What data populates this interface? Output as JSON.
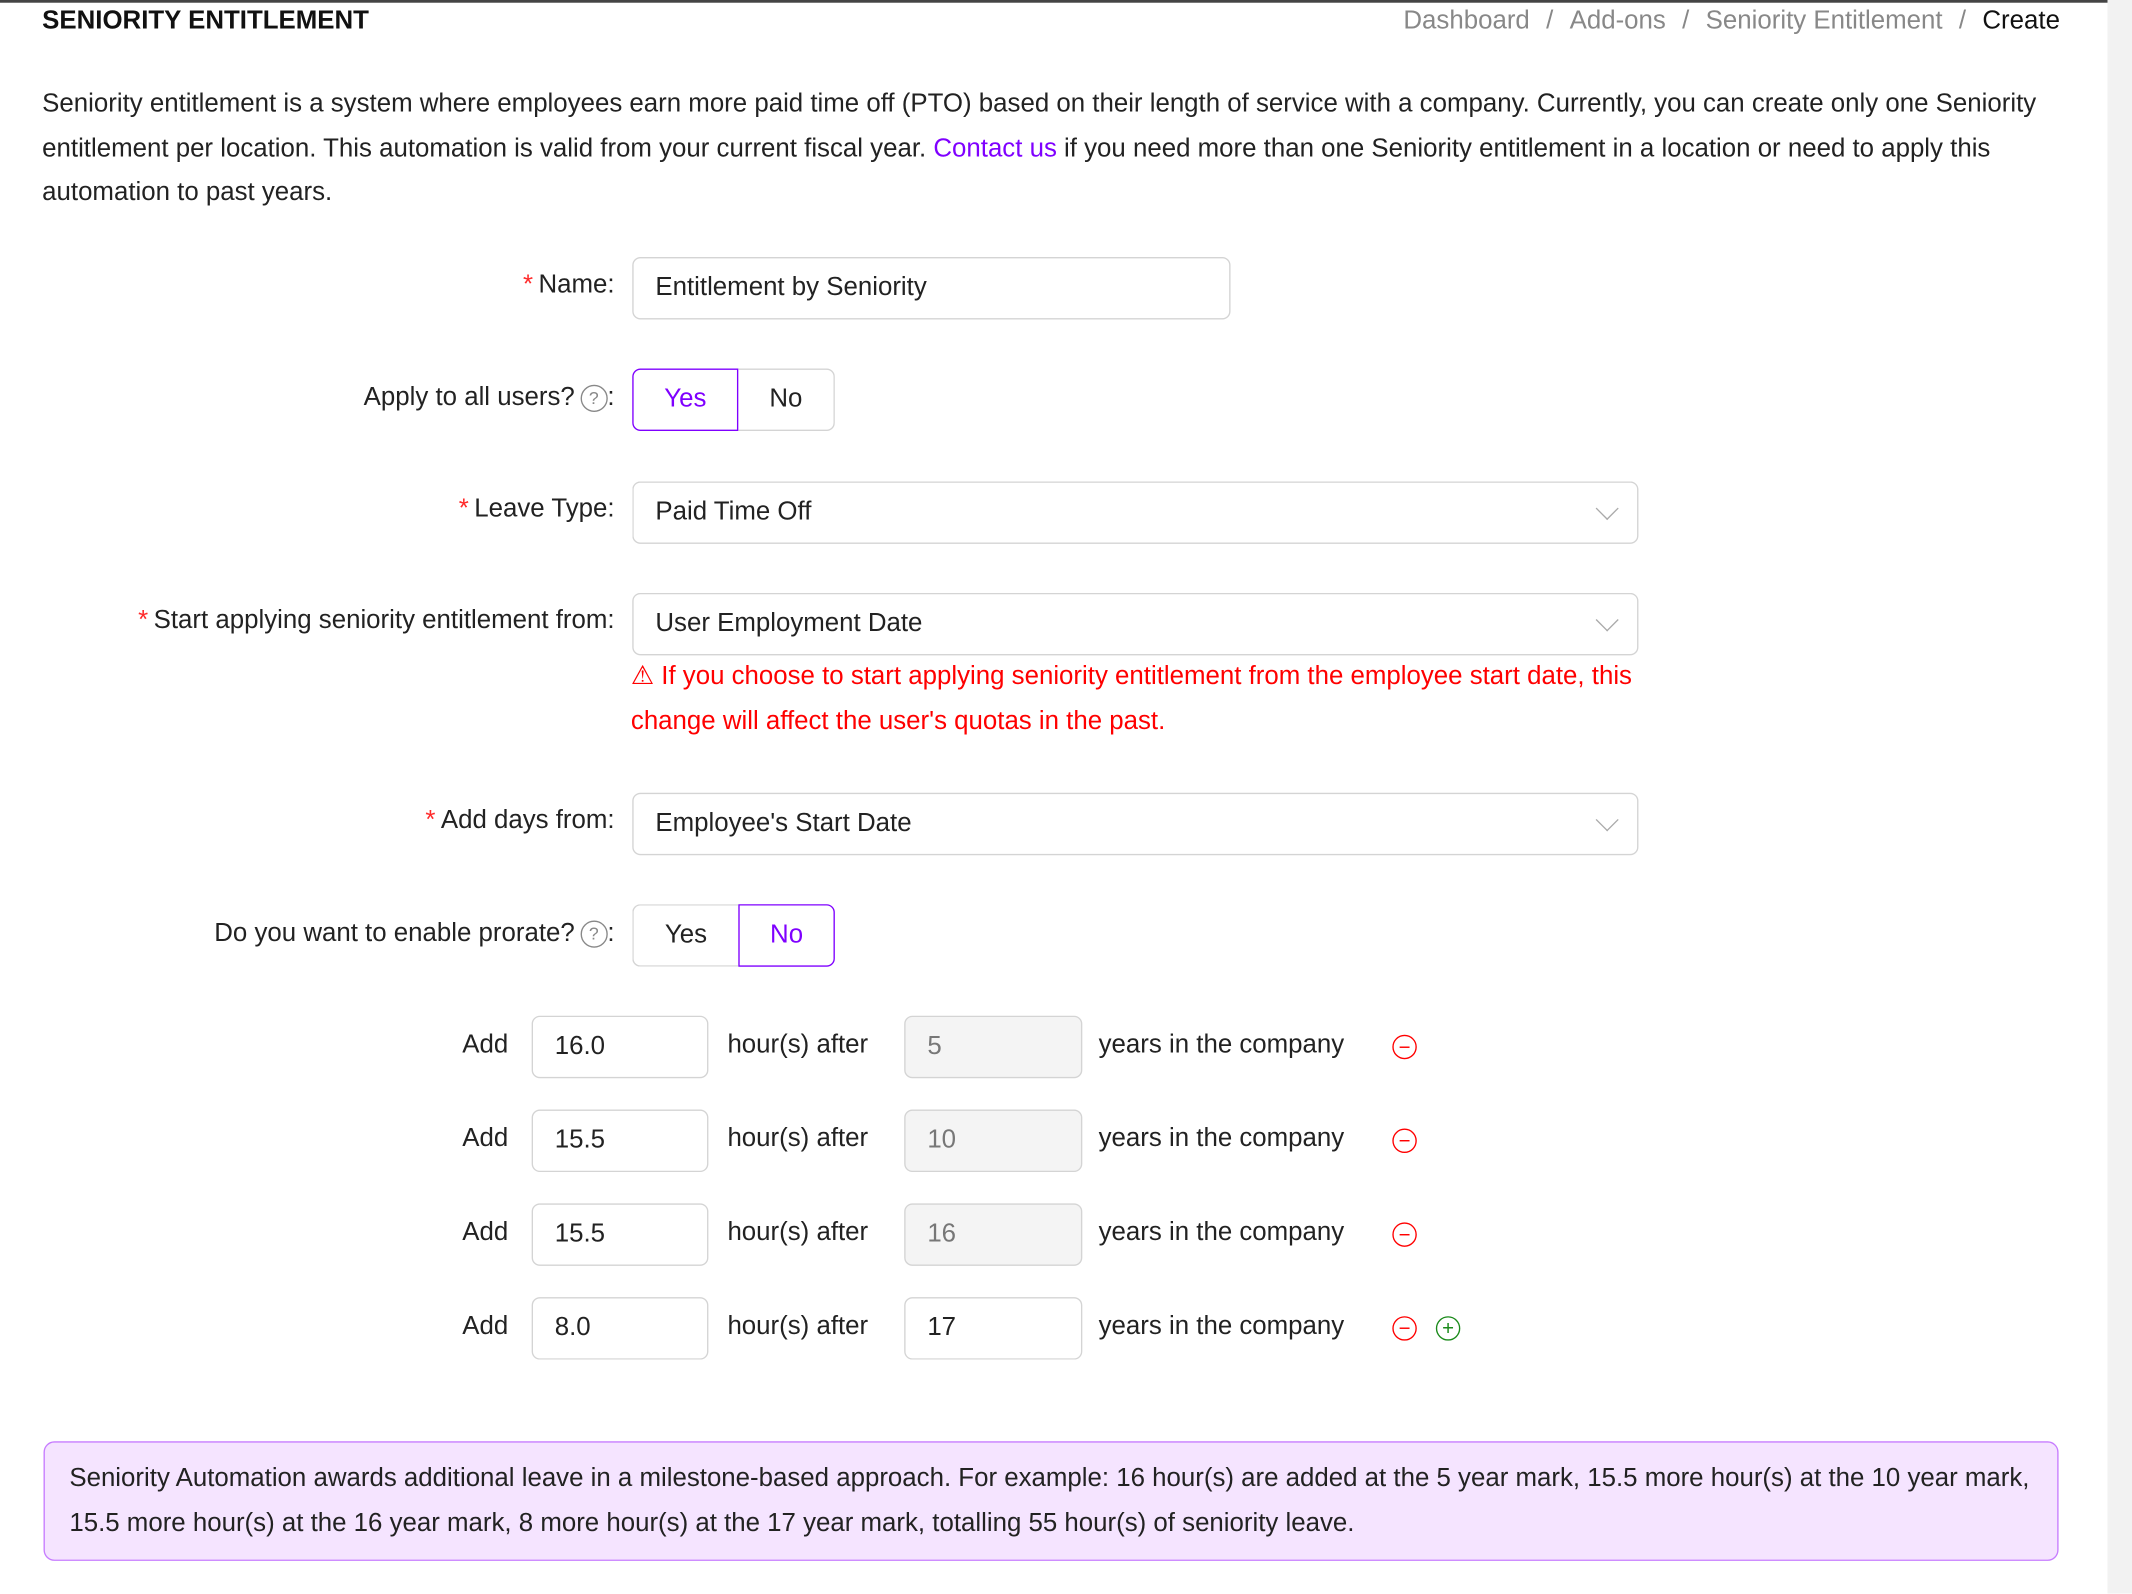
{
  "header": {
    "title": "SENIORITY ENTITLEMENT",
    "breadcrumb": [
      "Dashboard",
      "Add-ons",
      "Seniority Entitlement",
      "Create"
    ]
  },
  "intro": {
    "text_before": "Seniority entitlement is a system where employees earn more paid time off (PTO) based on their length of service with a company. Currently, you can create only one Seniority entitlement per location. This automation is valid from your current fiscal year. ",
    "link": "Contact us",
    "text_after": " if you need more than one Seniority entitlement in a location or need to apply this automation to past years."
  },
  "form": {
    "name": {
      "label": "Name",
      "value": "Entitlement by Seniority",
      "required": true
    },
    "apply_all": {
      "label": "Apply to all users?",
      "yes": "Yes",
      "no": "No",
      "selected": "Yes"
    },
    "leave_type": {
      "label": "Leave Type",
      "value": "Paid Time Off",
      "required": true
    },
    "start_from": {
      "label": "Start applying seniority entitlement from",
      "value": "User Employment Date",
      "required": true,
      "warning": "If you choose to start applying seniority entitlement from the employee start date, this change will affect the user's quotas in the past."
    },
    "add_days_from": {
      "label": "Add days from",
      "value": "Employee's Start Date",
      "required": true
    },
    "prorate": {
      "label": "Do you want to enable prorate?",
      "yes": "Yes",
      "no": "No",
      "selected": "No"
    },
    "colon": ":",
    "required_mark": "*"
  },
  "rules": {
    "add_label": "Add",
    "after_label": "hour(s) after",
    "years_label": "years in the company",
    "rows": [
      {
        "hours": "16.0",
        "years": "5",
        "years_disabled": true
      },
      {
        "hours": "15.5",
        "years": "10",
        "years_disabled": true
      },
      {
        "hours": "15.5",
        "years": "16",
        "years_disabled": true
      },
      {
        "hours": "8.0",
        "years": "17",
        "years_disabled": false
      }
    ]
  },
  "info": {
    "text": "Seniority Automation awards additional leave in a milestone-based approach. For example: 16 hour(s) are added at the 5 year mark, 15.5 more hour(s) at the 10 year mark, 15.5 more hour(s) at the 16 year mark, 8 more hour(s) at the 17 year mark, totalling 55 hour(s) of seniority leave."
  },
  "colors": {
    "accent": "#7f00ff",
    "error": "#ff0000",
    "add": "#1a8a1a",
    "info_bg": "#f5e4ff",
    "info_border": "#c77dff"
  },
  "icons": {
    "help": "question-circle-icon",
    "warning": "warning-triangle-icon",
    "remove": "minus-circle-icon",
    "add": "plus-circle-icon",
    "select": "chevron-down-icon"
  }
}
